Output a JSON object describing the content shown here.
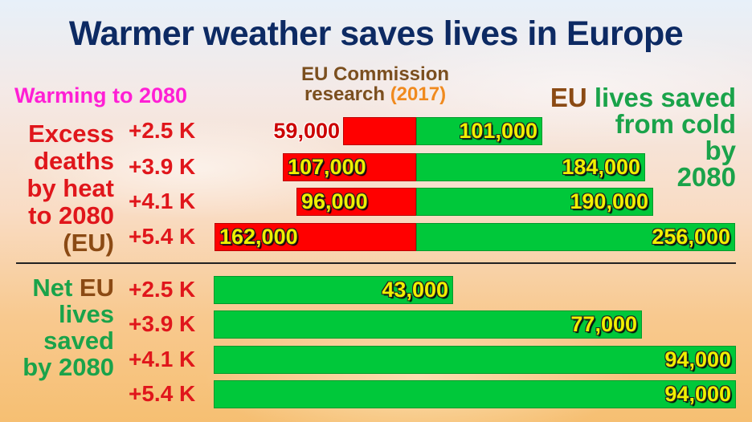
{
  "title": "Warmer weather saves lives in Europe",
  "warming_label": "Warming to 2080",
  "source": {
    "line1": "EU Commission",
    "line2": "research",
    "year": "(2017)"
  },
  "cold_label": {
    "eu": "EU",
    "rest1": " lives saved",
    "line2": "from cold",
    "line3": "by",
    "line4": "2080"
  },
  "heat_label": {
    "line1": "Excess",
    "line2": "deaths",
    "line3": "by heat",
    "line4": "to 2080",
    "line5": "(EU)"
  },
  "net_label": {
    "line1_a": "Net ",
    "line1_eu": "EU",
    "line2": "lives",
    "line3": "saved",
    "line4": "by 2080"
  },
  "colors": {
    "heat": "#ff0000",
    "cold": "#00c83a",
    "title": "#0d2a63",
    "label_text": "#f0f000"
  },
  "chart_data": [
    {
      "type": "bar",
      "orientation": "horizontal-diverging",
      "categories": [
        "+2.5 K",
        "+3.9 K",
        "+4.1 K",
        "+5.4 K"
      ],
      "series": [
        {
          "values": [
            59000,
            107000,
            96000,
            162000
          ],
          "labels": [
            "59,000",
            "107,000",
            "96,000",
            "162,000"
          ]
        },
        {
          "values": [
            101000,
            184000,
            190000,
            256000
          ],
          "labels": [
            "101,000",
            "184,000",
            "190,000",
            "256,000"
          ]
        }
      ]
    },
    {
      "type": "bar",
      "orientation": "horizontal",
      "categories": [
        "+2.5 K",
        "+3.9 K",
        "+4.1 K",
        "+5.4 K"
      ],
      "series": [
        {
          "values": [
            43000,
            77000,
            94000,
            94000
          ],
          "labels": [
            "43,000",
            "77,000",
            "94,000",
            "94,000"
          ]
        }
      ]
    }
  ]
}
